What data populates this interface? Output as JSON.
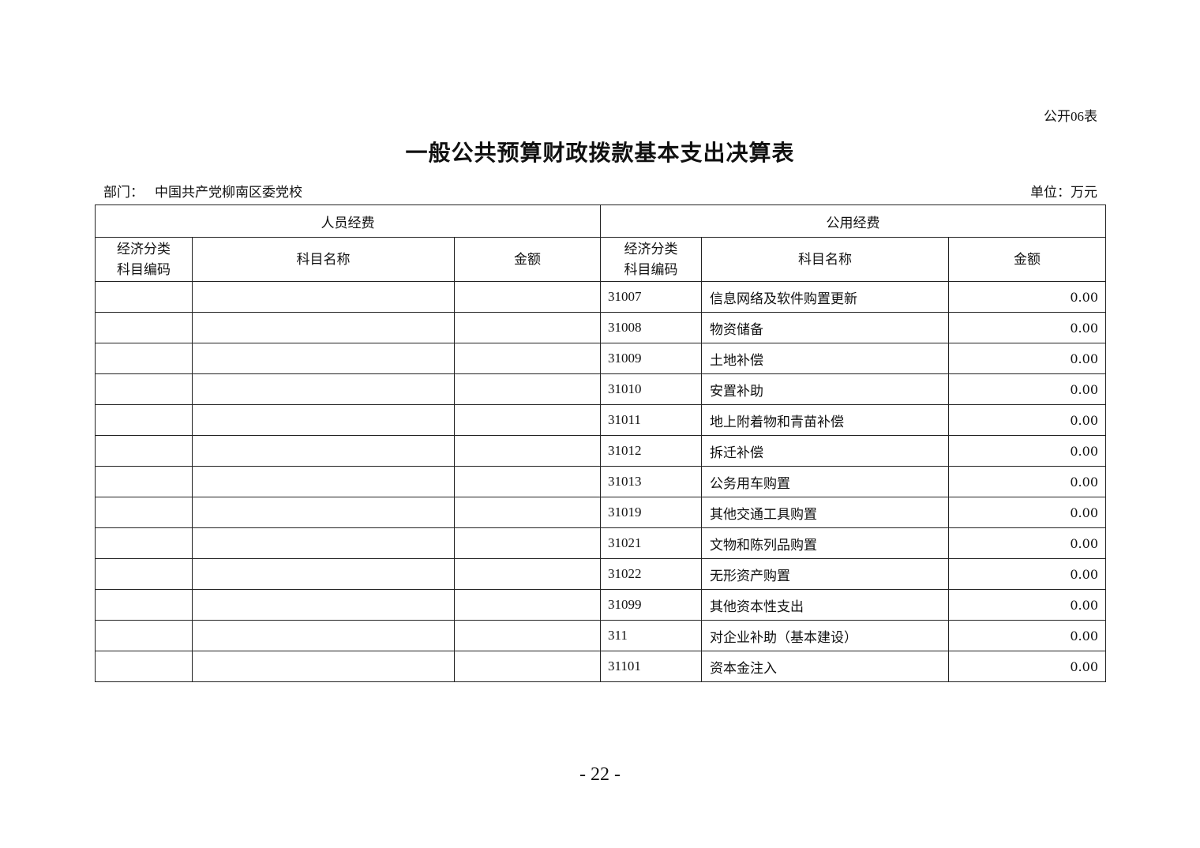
{
  "form_number": "公开06表",
  "title": "一般公共预算财政拨款基本支出决算表",
  "department_label": "部门：",
  "department_name": "中国共产党柳南区委党校",
  "unit": "单位：万元",
  "table": {
    "group_headers": [
      "人员经费",
      "公用经费"
    ],
    "column_headers": {
      "code_line1": "经济分类",
      "code_line2": "科目编码",
      "name": "科目名称",
      "amount": "金额"
    },
    "personnel_rows": [],
    "public_rows": [
      {
        "code": "31007",
        "name": "信息网络及软件购置更新",
        "amount": "0.00"
      },
      {
        "code": "31008",
        "name": "物资储备",
        "amount": "0.00"
      },
      {
        "code": "31009",
        "name": "土地补偿",
        "amount": "0.00"
      },
      {
        "code": "31010",
        "name": "安置补助",
        "amount": "0.00"
      },
      {
        "code": "31011",
        "name": "地上附着物和青苗补偿",
        "amount": "0.00"
      },
      {
        "code": "31012",
        "name": "拆迁补偿",
        "amount": "0.00"
      },
      {
        "code": "31013",
        "name": "公务用车购置",
        "amount": "0.00"
      },
      {
        "code": "31019",
        "name": "其他交通工具购置",
        "amount": "0.00"
      },
      {
        "code": "31021",
        "name": "文物和陈列品购置",
        "amount": "0.00"
      },
      {
        "code": "31022",
        "name": "无形资产购置",
        "amount": "0.00"
      },
      {
        "code": "31099",
        "name": "其他资本性支出",
        "amount": "0.00"
      },
      {
        "code": "311",
        "name": "对企业补助（基本建设）",
        "amount": "0.00"
      },
      {
        "code": "31101",
        "name": "资本金注入",
        "amount": "0.00"
      }
    ]
  },
  "page_number": "- 22 -"
}
